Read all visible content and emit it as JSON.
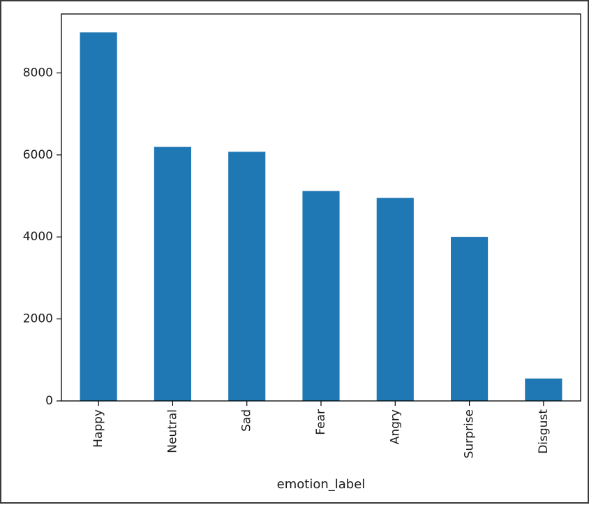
{
  "chart_data": {
    "type": "bar",
    "categories": [
      "Happy",
      "Neutral",
      "Sad",
      "Fear",
      "Angry",
      "Surprise",
      "Disgust"
    ],
    "values": [
      8989,
      6198,
      6077,
      5121,
      4953,
      4002,
      547
    ],
    "xlabel": "emotion_label",
    "ylabel": "",
    "ylim": [
      0,
      9438
    ],
    "yticks": [
      0,
      2000,
      4000,
      6000,
      8000
    ],
    "bar_color": "#1f77b4",
    "grid": false,
    "legend": false
  }
}
